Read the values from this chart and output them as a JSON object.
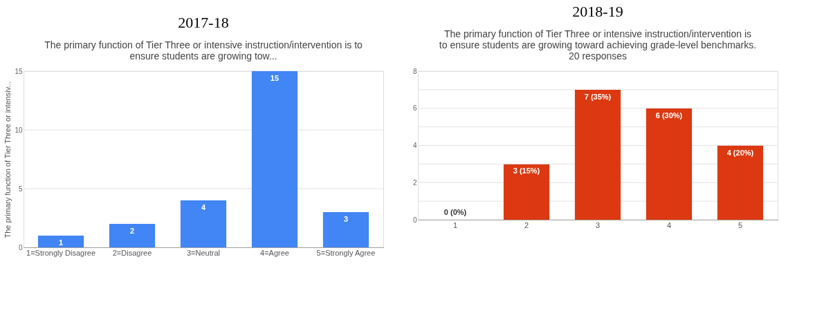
{
  "chart_data": [
    {
      "type": "bar",
      "title": "2017-18",
      "subtitle": "The primary function of Tier Three or intensive instruction/intervention is to ensure students are growing tow...",
      "ylabel": "The primary function of Tier Three or intensiv...",
      "categories": [
        "1=Strongly Disagree",
        "2=Disagree",
        "3=Neutral",
        "4=Agree",
        "5=Strongly Agree"
      ],
      "values": [
        1,
        2,
        4,
        15,
        3
      ],
      "color": "#4285f4",
      "ylim": [
        0,
        15
      ],
      "yticks": [
        0,
        5,
        10,
        15
      ],
      "grid": "y",
      "data_labels": true
    },
    {
      "type": "bar",
      "title": "2018-19",
      "subtitle": "The primary function of Tier Three or intensive instruction/intervention is to ensure students are growing toward achieving grade-level benchmarks.",
      "annotations": [
        "20 responses"
      ],
      "categories": [
        "1",
        "2",
        "3",
        "4",
        "5"
      ],
      "values": [
        0,
        3,
        7,
        6,
        4
      ],
      "color": "#dc3912",
      "ylim": [
        0,
        8
      ],
      "yticks": [
        0,
        {
          "value": 1,
          "label": null
        },
        2,
        {
          "value": 3,
          "label": null
        },
        4,
        {
          "value": 5,
          "label": null
        },
        6,
        {
          "value": 7,
          "label": null
        },
        8
      ],
      "grid": "y",
      "value_labels": [
        "0 (0%)",
        "3 (15%)",
        "7 (35%)",
        "6 (30%)",
        "4 (20%)"
      ]
    }
  ]
}
